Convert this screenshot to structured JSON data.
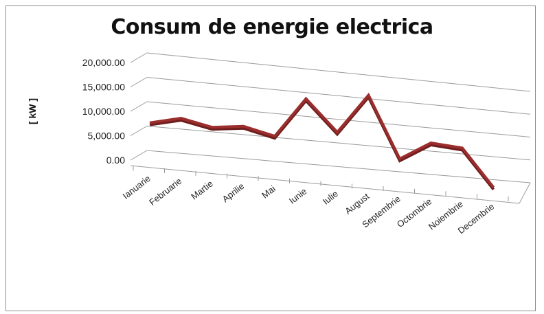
{
  "chart_data": {
    "type": "line",
    "title": "Consum de energie electrica",
    "xlabel": "",
    "ylabel": "[ kW ]",
    "categories": [
      "Ianuarie",
      "Februarie",
      "Martie",
      "Aprilie",
      "Mai",
      "Iunie",
      "Iulie",
      "August",
      "Septembrie",
      "Octombrie",
      "Noiembrie",
      "Decembrie"
    ],
    "series": [
      {
        "values": [
          8000,
          9500,
          8200,
          9000,
          7500,
          16000,
          9500,
          18000,
          5000,
          9000,
          8500,
          500
        ]
      }
    ],
    "y_ticks": [
      "0.00",
      "5,000.00",
      "10,000.00",
      "15,000.00",
      "20,000.00"
    ],
    "ylim": [
      0,
      20000
    ],
    "grid": true,
    "legend": "none",
    "style": "3d-line",
    "colors": {
      "line": "#9b2d2d",
      "line_dark": "#6e1e1e",
      "grid": "#9a9a9a"
    }
  }
}
